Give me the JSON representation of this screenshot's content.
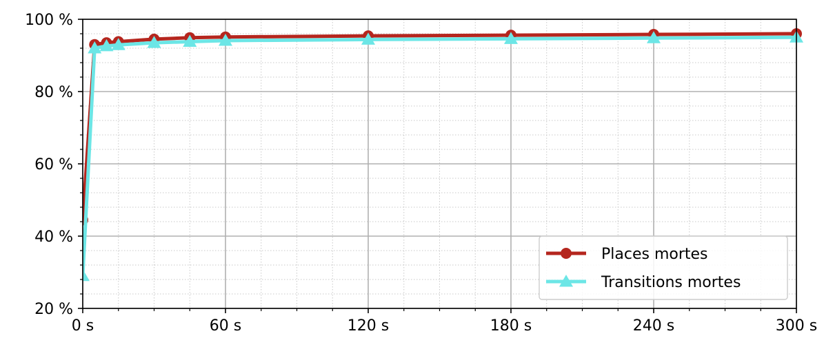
{
  "chart_data": {
    "type": "line",
    "x_ticks": [
      0,
      60,
      120,
      180,
      240,
      300
    ],
    "x_tick_labels": [
      "0 s",
      "60 s",
      "120 s",
      "180 s",
      "240 s",
      "300 s"
    ],
    "xlim": [
      0,
      300
    ],
    "y_ticks": [
      20,
      40,
      60,
      80,
      100
    ],
    "y_tick_labels": [
      "20 %",
      "40 %",
      "60 %",
      "80 %",
      "100 %"
    ],
    "ylim": [
      20,
      100
    ],
    "grid": true,
    "minor_grid": true,
    "legend_position": "bottom-right",
    "series": [
      {
        "name": "Places mortes",
        "color": "#b5261e",
        "marker": "circle",
        "x": [
          0,
          5,
          10,
          15,
          30,
          45,
          60,
          120,
          180,
          240,
          300
        ],
        "y": [
          44.5,
          93.0,
          93.5,
          93.8,
          94.5,
          94.9,
          95.1,
          95.4,
          95.6,
          95.8,
          96.0
        ]
      },
      {
        "name": "Transitions mortes",
        "color": "#6ce6e6",
        "marker": "triangle",
        "x": [
          0,
          5,
          10,
          15,
          30,
          45,
          60,
          120,
          180,
          240,
          300
        ],
        "y": [
          29.0,
          92.0,
          92.6,
          92.9,
          93.5,
          93.8,
          94.1,
          94.4,
          94.6,
          94.8,
          95.0
        ]
      }
    ]
  }
}
